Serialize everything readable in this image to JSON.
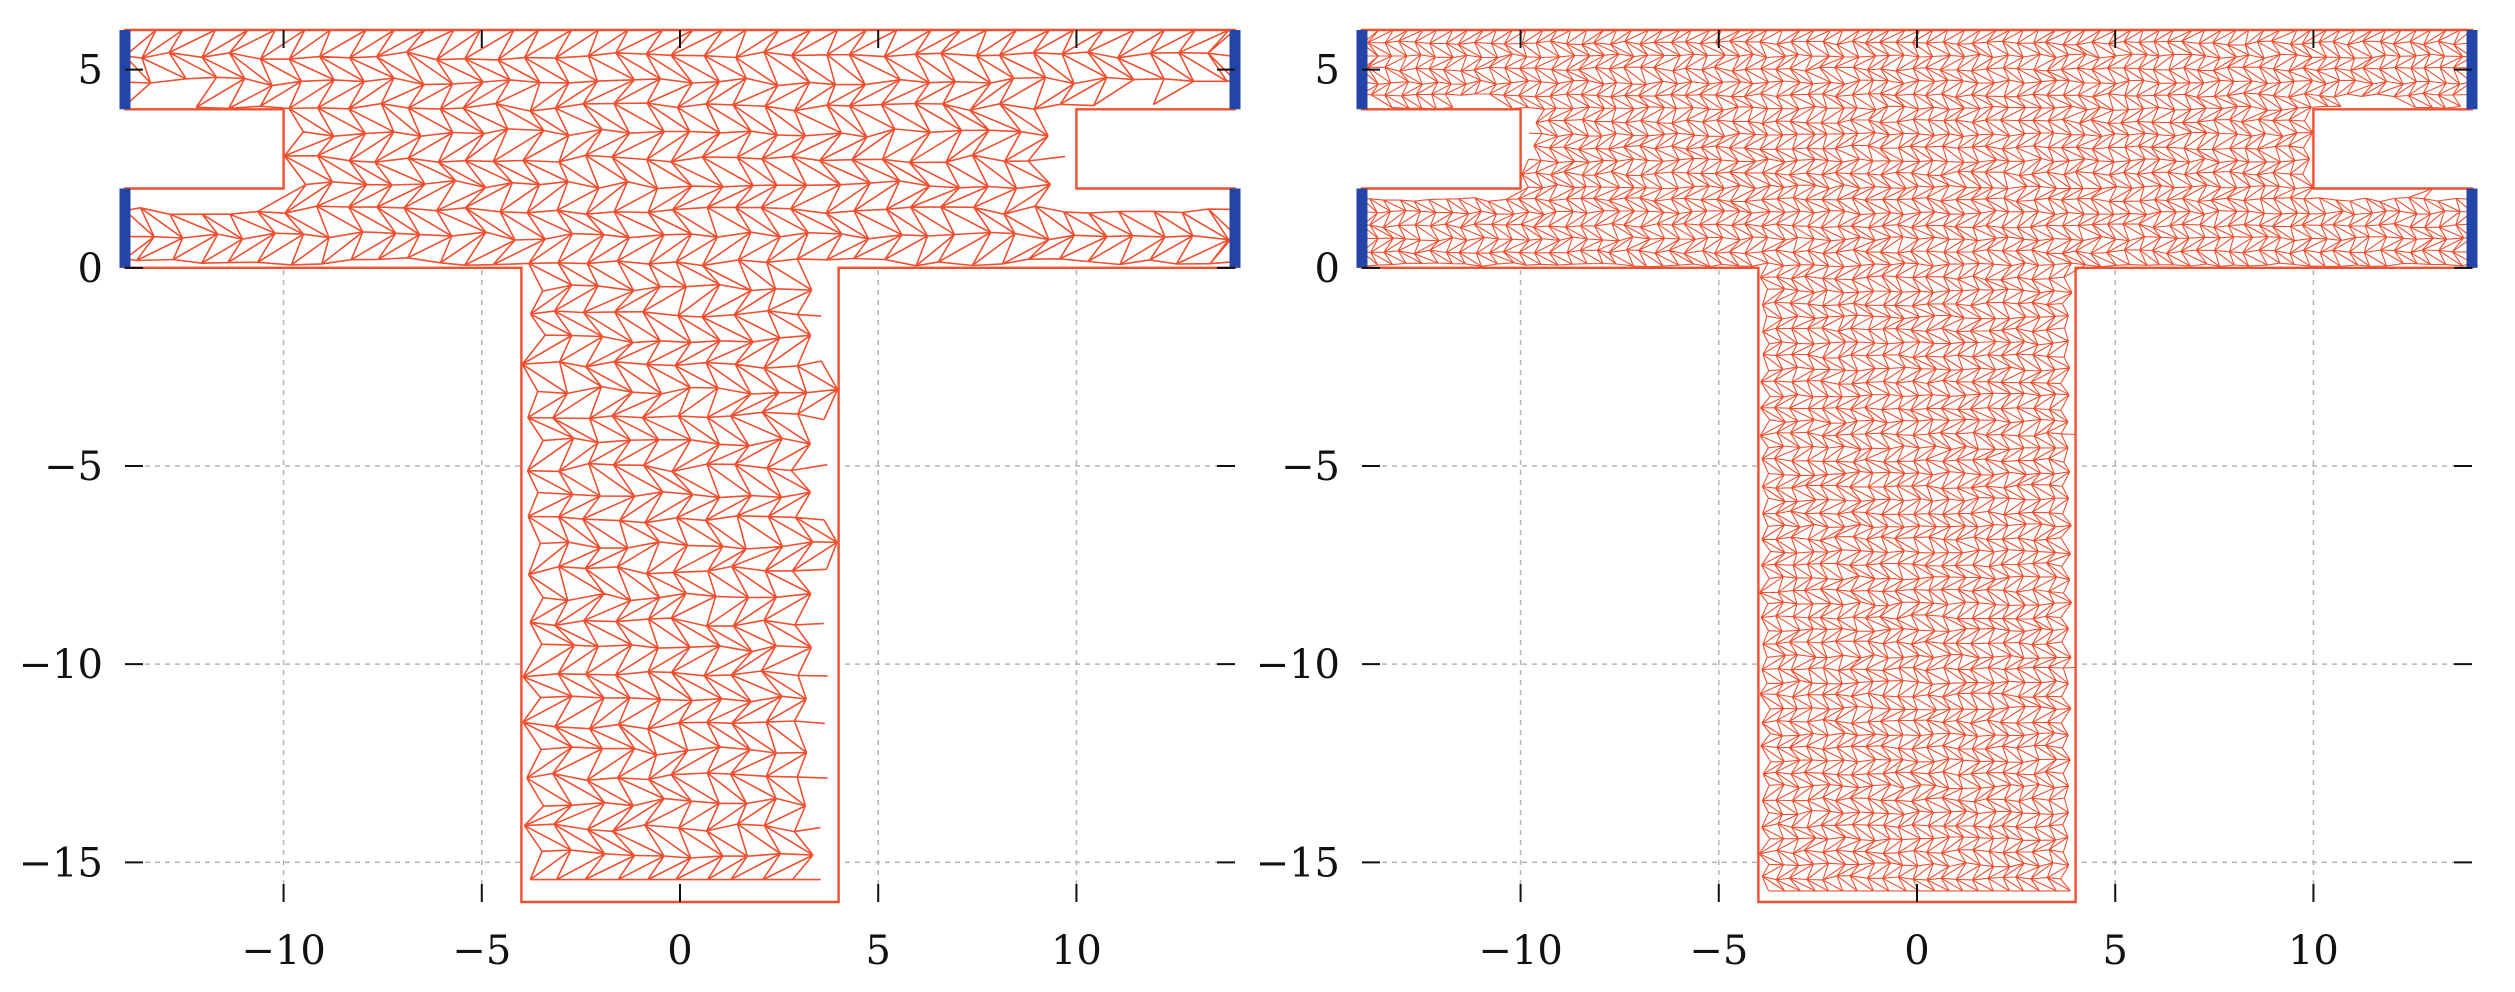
{
  "colors": {
    "mesh": "#f05030",
    "boundary": "#2445a8",
    "grid": "#b4b4b4",
    "axis": "#111111",
    "background": "#ffffff"
  },
  "domain_geometry": {
    "units": "data",
    "outline": [
      [
        -14,
        0
      ],
      [
        -4,
        0
      ],
      [
        -4,
        -16
      ],
      [
        4,
        -16
      ],
      [
        4,
        0
      ],
      [
        14,
        0
      ],
      [
        14,
        2
      ],
      [
        10,
        2
      ],
      [
        10,
        4
      ],
      [
        14,
        4
      ],
      [
        14,
        6
      ],
      [
        -14,
        6
      ],
      [
        -14,
        4
      ],
      [
        -10,
        4
      ],
      [
        -10,
        2
      ],
      [
        -14,
        2
      ]
    ],
    "boundary_segments": [
      {
        "x": -14,
        "y": [
          4,
          6
        ]
      },
      {
        "x": -14,
        "y": [
          0,
          2
        ]
      },
      {
        "x": 14,
        "y": [
          4,
          6
        ]
      },
      {
        "x": 14,
        "y": [
          0,
          2
        ]
      }
    ]
  },
  "panels": [
    {
      "id": "coarse",
      "xlim": [
        -14,
        14
      ],
      "ylim": [
        -16,
        6
      ],
      "mesh_spacing": 0.75,
      "xticks": [
        {
          "value": -10,
          "label": "−10"
        },
        {
          "value": -5,
          "label": "−5"
        },
        {
          "value": 0,
          "label": "0"
        },
        {
          "value": 5,
          "label": "5"
        },
        {
          "value": 10,
          "label": "10"
        }
      ],
      "yticks": [
        {
          "value": 5,
          "label": "5"
        },
        {
          "value": 0,
          "label": "0"
        },
        {
          "value": -5,
          "label": "−5"
        },
        {
          "value": -10,
          "label": "−10"
        },
        {
          "value": -15,
          "label": "−15"
        }
      ]
    },
    {
      "id": "fine",
      "xlim": [
        -14,
        14
      ],
      "ylim": [
        -16,
        6
      ],
      "mesh_spacing": 0.38,
      "xticks": [
        {
          "value": -10,
          "label": "−10"
        },
        {
          "value": -5,
          "label": "−5"
        },
        {
          "value": 0,
          "label": "0"
        },
        {
          "value": 5,
          "label": "5"
        },
        {
          "value": 10,
          "label": "10"
        }
      ],
      "yticks": [
        {
          "value": 5,
          "label": "5"
        },
        {
          "value": 0,
          "label": "0"
        },
        {
          "value": -5,
          "label": "−5"
        },
        {
          "value": -10,
          "label": "−10"
        },
        {
          "value": -15,
          "label": "−15"
        }
      ]
    }
  ]
}
